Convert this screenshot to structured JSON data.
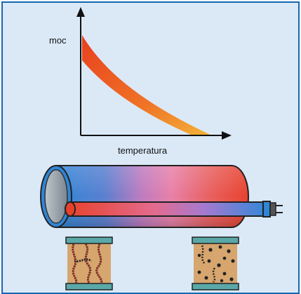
{
  "chart": {
    "y_label": "moc",
    "x_label": "temperatura"
  },
  "colors": {
    "frame_border": "#1566b3",
    "frame_background": "#dbe9f7",
    "curve_hot": "#e8401f",
    "curve_cool": "#f3b23a",
    "cable_blue": "#2f86d6",
    "cable_pink": "#e880a8",
    "cable_red": "#e8412b",
    "element_fill": "#d7a56e",
    "element_plate": "#5aa8a8"
  }
}
